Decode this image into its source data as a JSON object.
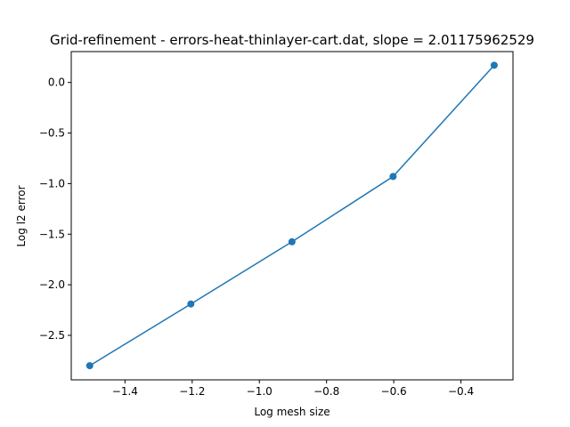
{
  "chart_data": {
    "type": "line",
    "title": "Grid-refinement - errors-heat-thinlayer-cart.dat, slope = 2.01175962529",
    "xlabel": "Log mesh size",
    "ylabel": "Log l2 error",
    "xlim": [
      -1.56,
      -0.245
    ],
    "ylim": [
      -2.94,
      0.305
    ],
    "x_ticks": [
      -1.4,
      -1.2,
      -1.0,
      -0.8,
      -0.6,
      -0.4
    ],
    "x_tick_labels": [
      "−1.4",
      "−1.2",
      "−1.0",
      "−0.8",
      "−0.6",
      "−0.4"
    ],
    "y_ticks": [
      -2.5,
      -2.0,
      -1.5,
      -1.0,
      -0.5,
      0.0
    ],
    "y_tick_labels": [
      "−2.5",
      "−2.0",
      "−1.5",
      "−1.0",
      "−0.5",
      "0.0"
    ],
    "grid": false,
    "legend": "none",
    "series": [
      {
        "x": [
          -1.505,
          -1.204,
          -0.903,
          -0.602,
          -0.301
        ],
        "y": [
          -2.8,
          -2.19,
          -1.575,
          -0.93,
          0.17
        ],
        "color": "#1f77b4",
        "marker": "circle"
      }
    ]
  }
}
